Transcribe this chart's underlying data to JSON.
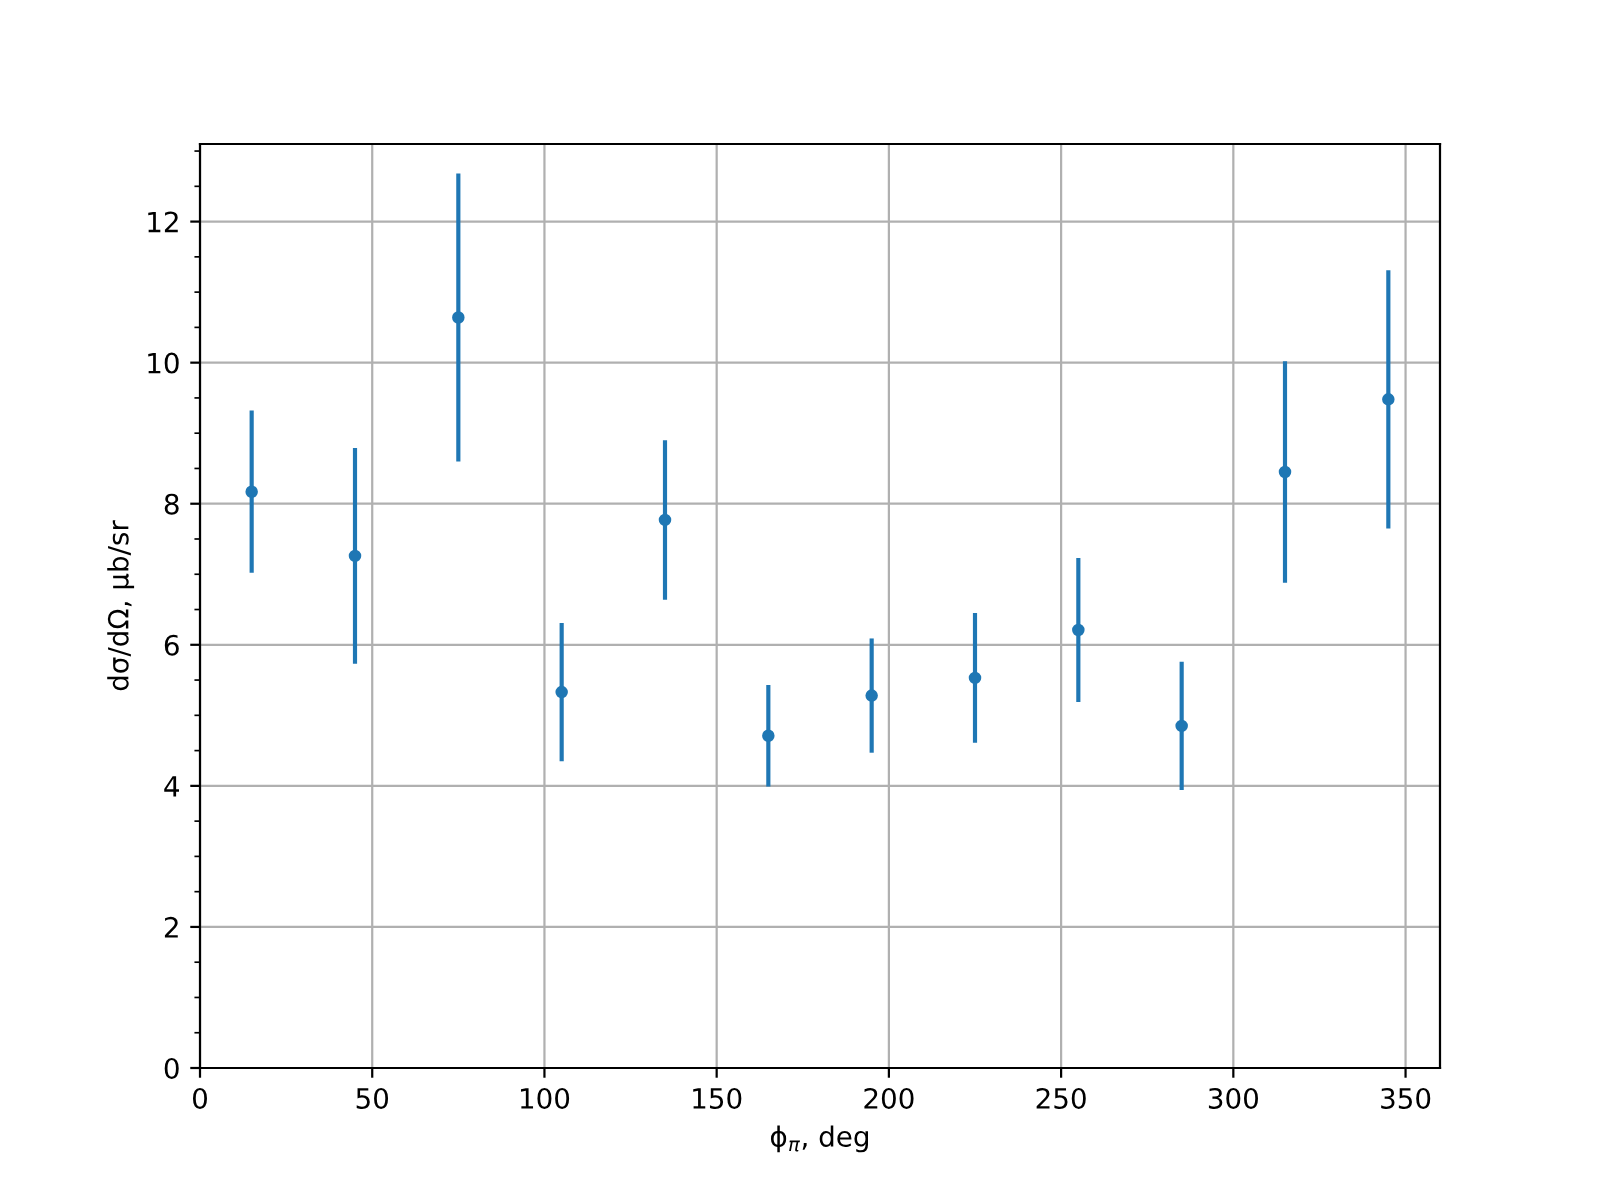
{
  "chart_data": {
    "type": "scatter",
    "xlabel": "ϕ$_{π}$, deg",
    "ylabel": "dσ/dΩ, μb/sr",
    "x": [
      15,
      45,
      75,
      105,
      135,
      165,
      195,
      225,
      255,
      285,
      315,
      345
    ],
    "series": [
      {
        "color": "#1f77b4",
        "values": [
          8.17,
          7.26,
          10.64,
          5.33,
          7.77,
          4.71,
          5.28,
          5.53,
          6.21,
          4.85,
          8.45,
          9.48
        ],
        "errors": [
          1.15,
          1.53,
          2.04,
          0.98,
          1.13,
          0.72,
          0.81,
          0.92,
          1.02,
          0.91,
          1.57,
          1.83
        ]
      }
    ],
    "xlim": [
      0,
      360
    ],
    "ylim": [
      0,
      13.1
    ],
    "xticks": [
      0,
      50,
      100,
      150,
      200,
      250,
      300,
      350
    ],
    "yticks": [
      0,
      2,
      4,
      6,
      8,
      10,
      12
    ],
    "grid": true,
    "marker": "circle",
    "legend": false
  }
}
